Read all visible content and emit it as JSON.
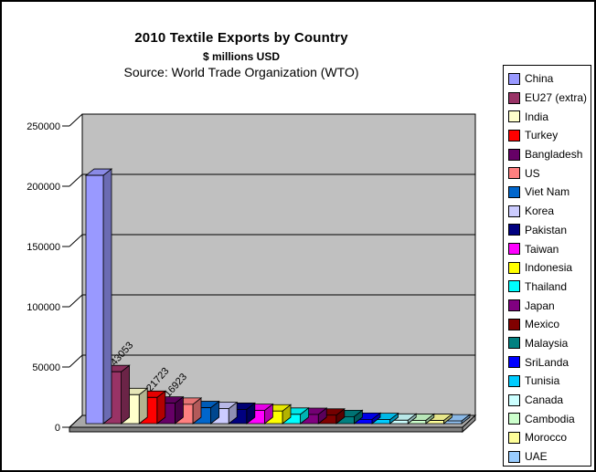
{
  "header": {
    "title": "2010 Textile Exports by Country",
    "subtitle": "$ millions USD",
    "source": "Source: World Trade Organization (WTO)"
  },
  "y_axis": {
    "ticks": [
      "0",
      "50000",
      "100000",
      "150000",
      "200000",
      "250000"
    ]
  },
  "chart_data": {
    "type": "bar",
    "style": "3d-column",
    "title": "2010 Textile Exports by Country",
    "subtitle": "$ millions USD",
    "annotation": "Source: World Trade Organization (WTO)",
    "xlabel": "",
    "ylabel": "",
    "ylim": [
      0,
      250000
    ],
    "ytick_step": 50000,
    "gridlines": "horizontal",
    "legend_position": "right",
    "wall_color": "#C0C0C0",
    "floor_color": "#A8A8A8",
    "floor_front_color": "#808080",
    "floor_side_color": "#909090",
    "background": "#FFFFFF",
    "categories": [
      "China",
      "EU27 (extra)",
      "India",
      "Turkey",
      "Bangladesh",
      "US",
      "Viet Nam",
      "Korea",
      "Pakistan",
      "Taiwan",
      "Indonesia",
      "Thailand",
      "Japan",
      "Mexico",
      "Malaysia",
      "SriLanda",
      "Tunisia",
      "Canada",
      "Cambodia",
      "Morocco",
      "UAE"
    ],
    "values": [
      206000,
      43053,
      24000,
      21723,
      16923,
      16000,
      13200,
      12400,
      11800,
      10900,
      10400,
      7700,
      7600,
      7000,
      5800,
      3500,
      3300,
      2800,
      2700,
      2600,
      2200
    ],
    "colors": [
      "#9999FF",
      "#993366",
      "#FFFFCC",
      "#FF0000",
      "#660066",
      "#FF8080",
      "#0066CC",
      "#CCCCFF",
      "#000080",
      "#FF00FF",
      "#FFFF00",
      "#00FFFF",
      "#800080",
      "#800000",
      "#008080",
      "#0000FF",
      "#00CCFF",
      "#CCFFFF",
      "#CCFFCC",
      "#FFFF99",
      "#99CCFF"
    ],
    "data_labels": [
      {
        "category": "EU27 (extra)",
        "text": "43053"
      },
      {
        "category": "Turkey",
        "text": "21723"
      },
      {
        "category": "Bangladesh",
        "text": "16923"
      }
    ],
    "note": "Only the EU27 (extra), Turkey and Bangladesh bars carry printed data labels (43053, 21723, 16923); all other values are estimates read from bar heights against the gridlines."
  }
}
